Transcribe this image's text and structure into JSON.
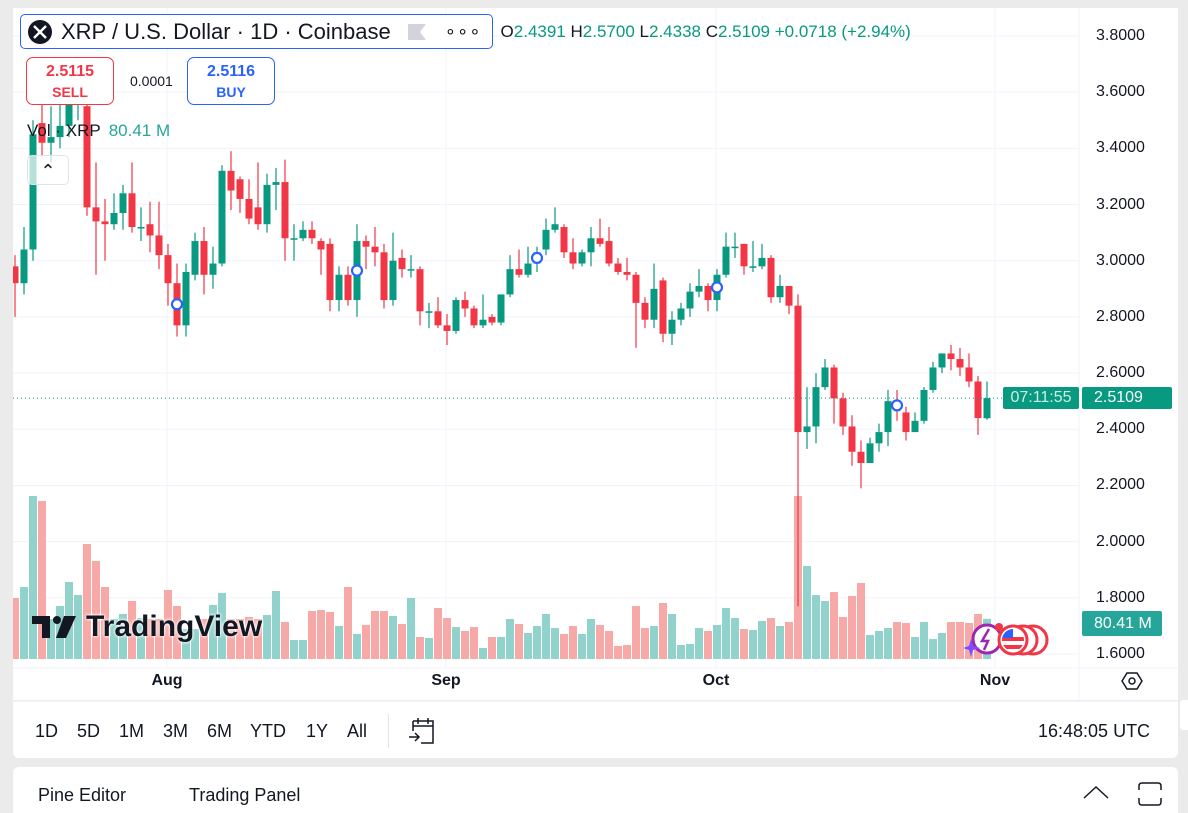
{
  "header": {
    "symbol_title": "XRP / U.S. Dollar · 1D · Coinbase",
    "ohlc": {
      "o_label": "O",
      "o": "2.4391",
      "h_label": "H",
      "h": "2.5700",
      "l_label": "L",
      "l": "2.4338",
      "c_label": "C",
      "c": "2.5109",
      "change": "+0.0718 (+2.94%)"
    },
    "sell": {
      "price": "2.5115",
      "label": "SELL"
    },
    "spread": "0.0001",
    "buy": {
      "price": "2.5116",
      "label": "BUY"
    },
    "volume_legend": {
      "label": "Vol · XRP",
      "value": "80.41 M"
    }
  },
  "price_tag": {
    "price": "2.5109",
    "countdown": "07:11:55"
  },
  "volume_tag": "80.41 M",
  "logo_text": "TradingView",
  "colors": {
    "up": "#089981",
    "down": "#f23645",
    "vol_up": "#92d2cc",
    "vol_down": "#f7a9a7",
    "accent": "#2962ff"
  },
  "toolbar": {
    "ranges": [
      "1D",
      "5D",
      "1M",
      "3M",
      "6M",
      "YTD",
      "1Y",
      "All"
    ],
    "clock": "16:48:05 UTC"
  },
  "bottom_panel": {
    "pine_editor": "Pine Editor",
    "trading_panel": "Trading Panel"
  },
  "chart_data": {
    "type": "candlestick",
    "title": "XRP / U.S. Dollar · 1D · Coinbase",
    "y_ticks": [
      "3.8000",
      "3.6000",
      "3.4000",
      "3.2000",
      "3.0000",
      "2.8000",
      "2.6000",
      "2.4000",
      "2.2000",
      "2.0000",
      "1.8000",
      "1.6000"
    ],
    "ylim": [
      1.6,
      3.8
    ],
    "x_ticks": [
      {
        "label": "Aug",
        "index": 17
      },
      {
        "label": "Sep",
        "index": 48
      },
      {
        "label": "Oct",
        "index": 78
      },
      {
        "label": "Nov",
        "index": 109
      }
    ],
    "event_indices": [
      18,
      38,
      58,
      78,
      98
    ],
    "ohlc": [
      [
        2.98,
        3.02,
        2.8,
        2.92
      ],
      [
        2.92,
        3.12,
        2.88,
        3.04
      ],
      [
        3.04,
        3.5,
        3.0,
        3.45
      ],
      [
        3.49,
        3.62,
        3.37,
        3.42
      ],
      [
        3.42,
        3.55,
        3.35,
        3.44
      ],
      [
        3.44,
        3.58,
        3.4,
        3.48
      ],
      [
        3.48,
        3.62,
        3.44,
        3.58
      ],
      [
        3.58,
        3.66,
        3.5,
        3.6
      ],
      [
        3.55,
        3.6,
        3.16,
        3.19
      ],
      [
        3.19,
        3.35,
        2.95,
        3.14
      ],
      [
        3.14,
        3.22,
        3.0,
        3.13
      ],
      [
        3.13,
        3.24,
        3.11,
        3.17
      ],
      [
        3.17,
        3.27,
        3.11,
        3.24
      ],
      [
        3.24,
        3.35,
        3.1,
        3.12
      ],
      [
        3.12,
        3.19,
        3.07,
        3.12
      ],
      [
        3.13,
        3.21,
        3.03,
        3.09
      ],
      [
        3.09,
        3.21,
        2.97,
        3.02
      ],
      [
        3.02,
        3.06,
        2.84,
        2.92
      ],
      [
        2.92,
        2.99,
        2.73,
        2.77
      ],
      [
        2.77,
        2.99,
        2.73,
        2.96
      ],
      [
        2.95,
        3.1,
        2.93,
        3.07
      ],
      [
        3.07,
        3.12,
        2.88,
        2.95
      ],
      [
        2.95,
        3.05,
        2.9,
        2.99
      ],
      [
        2.99,
        3.34,
        2.98,
        3.32
      ],
      [
        3.32,
        3.39,
        3.18,
        3.25
      ],
      [
        3.29,
        3.3,
        3.17,
        3.22
      ],
      [
        3.22,
        3.29,
        3.13,
        3.15
      ],
      [
        3.19,
        3.35,
        3.11,
        3.13
      ],
      [
        3.13,
        3.31,
        3.1,
        3.27
      ],
      [
        3.27,
        3.33,
        3.18,
        3.28
      ],
      [
        3.28,
        3.36,
        3.0,
        3.08
      ],
      [
        3.08,
        3.13,
        3.0,
        3.08
      ],
      [
        3.08,
        3.14,
        3.07,
        3.11
      ],
      [
        3.11,
        3.14,
        3.06,
        3.08
      ],
      [
        3.07,
        3.08,
        2.95,
        3.04
      ],
      [
        3.06,
        3.08,
        2.82,
        2.86
      ],
      [
        2.86,
        2.98,
        2.82,
        2.95
      ],
      [
        2.95,
        2.98,
        2.84,
        2.86
      ],
      [
        2.86,
        3.13,
        2.8,
        3.07
      ],
      [
        3.07,
        3.09,
        2.97,
        3.05
      ],
      [
        3.05,
        3.12,
        2.98,
        3.03
      ],
      [
        3.03,
        3.06,
        2.83,
        2.86
      ],
      [
        2.86,
        3.1,
        2.84,
        3.0
      ],
      [
        3.01,
        3.04,
        2.94,
        2.97
      ],
      [
        2.97,
        3.02,
        2.94,
        2.97
      ],
      [
        2.97,
        2.98,
        2.77,
        2.82
      ],
      [
        2.82,
        2.85,
        2.76,
        2.82
      ],
      [
        2.82,
        2.87,
        2.76,
        2.77
      ],
      [
        2.77,
        2.81,
        2.7,
        2.75
      ],
      [
        2.75,
        2.87,
        2.74,
        2.86
      ],
      [
        2.86,
        2.89,
        2.8,
        2.83
      ],
      [
        2.83,
        2.84,
        2.76,
        2.77
      ],
      [
        2.77,
        2.88,
        2.76,
        2.79
      ],
      [
        2.8,
        2.81,
        2.77,
        2.78
      ],
      [
        2.78,
        2.88,
        2.77,
        2.88
      ],
      [
        2.88,
        3.02,
        2.87,
        2.97
      ],
      [
        2.97,
        3.04,
        2.94,
        2.95
      ],
      [
        2.95,
        3.05,
        2.94,
        2.99
      ],
      [
        2.99,
        3.05,
        2.96,
        3.03
      ],
      [
        3.04,
        3.15,
        3.02,
        3.11
      ],
      [
        3.11,
        3.19,
        3.1,
        3.13
      ],
      [
        3.12,
        3.13,
        3.01,
        3.03
      ],
      [
        3.03,
        3.08,
        2.97,
        2.99
      ],
      [
        2.99,
        3.04,
        2.98,
        3.03
      ],
      [
        3.03,
        3.12,
        2.98,
        3.08
      ],
      [
        3.08,
        3.15,
        3.05,
        3.06
      ],
      [
        3.07,
        3.12,
        2.98,
        2.99
      ],
      [
        2.99,
        3.01,
        2.95,
        2.96
      ],
      [
        2.96,
        3.01,
        2.93,
        2.95
      ],
      [
        2.95,
        2.96,
        2.69,
        2.85
      ],
      [
        2.85,
        2.87,
        2.76,
        2.79
      ],
      [
        2.79,
        2.99,
        2.76,
        2.9
      ],
      [
        2.93,
        2.94,
        2.71,
        2.74
      ],
      [
        2.74,
        2.82,
        2.7,
        2.79
      ],
      [
        2.79,
        2.85,
        2.77,
        2.83
      ],
      [
        2.83,
        2.92,
        2.8,
        2.89
      ],
      [
        2.89,
        2.97,
        2.87,
        2.91
      ],
      [
        2.91,
        2.92,
        2.82,
        2.86
      ],
      [
        2.86,
        2.97,
        2.82,
        2.95
      ],
      [
        2.95,
        3.1,
        2.94,
        3.05
      ],
      [
        3.05,
        3.1,
        3.01,
        3.05
      ],
      [
        3.06,
        3.06,
        2.95,
        2.98
      ],
      [
        2.98,
        3.07,
        2.96,
        2.98
      ],
      [
        2.98,
        3.06,
        2.97,
        3.01
      ],
      [
        3.01,
        3.02,
        2.85,
        2.87
      ],
      [
        2.87,
        2.95,
        2.85,
        2.91
      ],
      [
        2.91,
        2.91,
        2.81,
        2.84
      ],
      [
        2.84,
        2.88,
        1.77,
        2.39
      ],
      [
        2.39,
        2.55,
        2.33,
        2.41
      ],
      [
        2.41,
        2.6,
        2.35,
        2.55
      ],
      [
        2.55,
        2.65,
        2.54,
        2.62
      ],
      [
        2.62,
        2.63,
        2.42,
        2.51
      ],
      [
        2.51,
        2.53,
        2.38,
        2.41
      ],
      [
        2.41,
        2.45,
        2.27,
        2.32
      ],
      [
        2.32,
        2.36,
        2.19,
        2.28
      ],
      [
        2.28,
        2.37,
        2.28,
        2.35
      ],
      [
        2.35,
        2.42,
        2.32,
        2.39
      ],
      [
        2.39,
        2.54,
        2.34,
        2.5
      ],
      [
        2.5,
        2.54,
        2.43,
        2.47
      ],
      [
        2.46,
        2.48,
        2.36,
        2.39
      ],
      [
        2.39,
        2.46,
        2.39,
        2.43
      ],
      [
        2.43,
        2.55,
        2.42,
        2.54
      ],
      [
        2.54,
        2.64,
        2.53,
        2.62
      ],
      [
        2.62,
        2.67,
        2.6,
        2.67
      ],
      [
        2.67,
        2.7,
        2.61,
        2.65
      ],
      [
        2.65,
        2.69,
        2.59,
        2.62
      ],
      [
        2.62,
        2.67,
        2.55,
        2.57
      ],
      [
        2.57,
        2.59,
        2.38,
        2.44
      ],
      [
        2.4391,
        2.57,
        2.4338,
        2.5109
      ]
    ],
    "volume_millions": [
      122,
      144,
      326,
      316,
      80,
      106,
      154,
      128,
      230,
      196,
      144,
      80,
      90,
      116,
      82,
      80,
      80,
      138,
      106,
      60,
      60,
      80,
      108,
      132,
      80,
      80,
      84,
      80,
      88,
      136,
      74,
      38,
      38,
      96,
      98,
      94,
      66,
      144,
      50,
      68,
      96,
      96,
      86,
      70,
      122,
      44,
      42,
      102,
      82,
      64,
      56,
      64,
      22,
      44,
      44,
      80,
      70,
      52,
      66,
      90,
      62,
      50,
      66,
      50,
      80,
      68,
      56,
      26,
      28,
      106,
      62,
      66,
      112,
      90,
      28,
      30,
      62,
      56,
      68,
      102,
      82,
      60,
      58,
      76,
      82,
      66,
      74,
      326,
      186,
      128,
      116,
      134,
      84,
      126,
      152,
      48,
      56,
      62,
      74,
      72,
      44,
      74,
      40,
      52,
      74,
      74,
      72,
      90,
      80.41
    ],
    "last_price": 2.5109
  }
}
